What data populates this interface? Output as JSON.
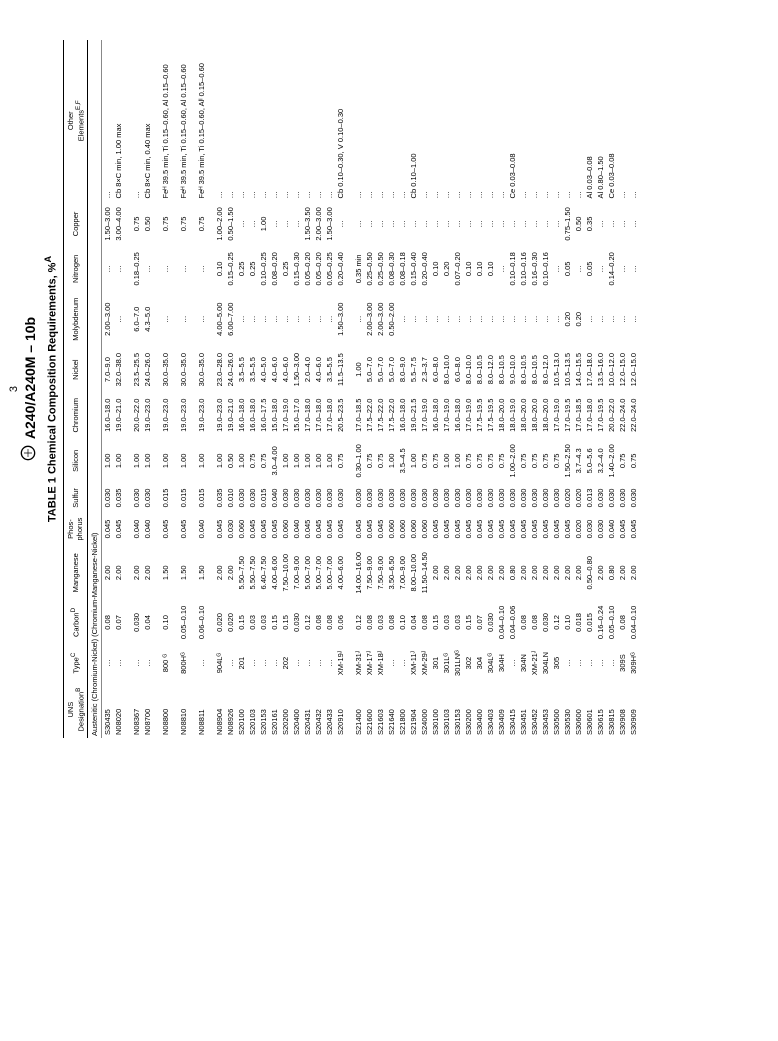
{
  "page_number": "3",
  "doc_title": "A240/A240M – 10b",
  "table_title": "TABLE 1 Chemical Composition Requirements, %",
  "table_title_super": "A",
  "section_heading": "Austenitic (Chromium-Nickel) (Chromium-Manganese-Nickel)",
  "columns": [
    "UNS\nDesignation",
    "Type",
    "Carbon",
    "Manganese",
    "Phos-\nphorus",
    "Sulfur",
    "Silicon",
    "Chromium",
    "Nickel",
    "Molybdenum",
    "Nitrogen",
    "Copper",
    "Other\nElements"
  ],
  "col_super": [
    "B",
    "C",
    "D",
    "",
    "",
    "",
    "",
    "",
    "",
    "",
    "",
    "",
    "E,F"
  ],
  "rows": [
    [
      "S30435",
      "…",
      "0.08",
      "2.00",
      "0.045",
      "0.030",
      "1.00",
      "16.0–18.0",
      "7.0–9.0",
      "2.00–3.00",
      "…",
      "1.50–3.00",
      "…"
    ],
    [
      "N08020",
      "…",
      "0.07",
      "2.00",
      "0.045",
      "0.035",
      "1.00",
      "19.0–21.0",
      "32.0–38.0",
      "…",
      "…",
      "3.00–4.00",
      "Cb 8×C min, 1.00 max"
    ],
    [
      "",
      "",
      "",
      "",
      "",
      "",
      "",
      "",
      "",
      "",
      "",
      "",
      ""
    ],
    [
      "N08367",
      "…",
      "0.030",
      "2.00",
      "0.040",
      "0.030",
      "1.00",
      "20.0–22.0",
      "23.5–25.5",
      "6.0–7.0",
      "0.18–0.25",
      "0.75",
      "…"
    ],
    [
      "N08700",
      "…",
      "0.04",
      "2.00",
      "0.040",
      "0.030",
      "1.00",
      "19.0–23.0",
      "24.0–26.0",
      "4.3–5.0",
      "…",
      "0.50",
      "Cb 8×C min, 0.40 max"
    ],
    [
      "",
      "",
      "",
      "",
      "",
      "",
      "",
      "",
      "",
      "",
      "",
      "",
      ""
    ],
    [
      "N08800",
      "800 ᴳ",
      "0.10",
      "1.50",
      "0.045",
      "0.015",
      "1.00",
      "19.0–23.0",
      "30.0–35.0",
      "…",
      "…",
      "0.75",
      "Feᴴ 39.5 min, Ti 0.15–0.60, Al 0.15–0.60"
    ],
    [
      "",
      "",
      "",
      "",
      "",
      "",
      "",
      "",
      "",
      "",
      "",
      "",
      ""
    ],
    [
      "N08810",
      "800Hᴳ",
      "0.05–0.10",
      "1.50",
      "0.045",
      "0.015",
      "1.00",
      "19.0–23.0",
      "30.0–35.0",
      "…",
      "…",
      "0.75",
      "Feᴴ 39.5 min, Ti 0.15–0.60, Al 0.15–0.60"
    ],
    [
      "",
      "",
      "",
      "",
      "",
      "",
      "",
      "",
      "",
      "",
      "",
      "",
      ""
    ],
    [
      "N08811",
      "…",
      "0.06–0.10",
      "1.50",
      "0.040",
      "0.015",
      "1.00",
      "19.0–23.0",
      "30.0–35.0",
      "…",
      "…",
      "0.75",
      "Feᴴ 39.5 min, Ti 0.15–0.60, Alᴵ 0.15–0.60"
    ],
    [
      "",
      "",
      "",
      "",
      "",
      "",
      "",
      "",
      "",
      "",
      "",
      "",
      ""
    ],
    [
      "N08904",
      "904Lᴳ",
      "0.020",
      "2.00",
      "0.045",
      "0.035",
      "1.00",
      "19.0–23.0",
      "23.0–28.0",
      "4.00–5.00",
      "0.10",
      "1.00–2.00",
      "…"
    ],
    [
      "N08926",
      "…",
      "0.020",
      "2.00",
      "0.030",
      "0.010",
      "0.50",
      "19.0–21.0",
      "24.0–26.0",
      "6.00–7.00",
      "0.15–0.25",
      "0.50–1.50",
      "…"
    ],
    [
      "S20100",
      "201",
      "0.15",
      "5.50–7.50",
      "0.060",
      "0.030",
      "1.00",
      "16.0–18.0",
      "3.5–5.5",
      "…",
      "0.25",
      "…",
      "…"
    ],
    [
      "S20103",
      "…",
      "0.03",
      "5.50–7.50",
      "0.045",
      "0.030",
      "0.75",
      "16.0–18.0",
      "3.5–5.5",
      "…",
      "0.25",
      "…",
      "…"
    ],
    [
      "S20153",
      "…",
      "0.03",
      "6.40–7.50",
      "0.045",
      "0.015",
      "0.75",
      "16.0–17.5",
      "4.0–5.0",
      "…",
      "0.10–0.25",
      "1.00",
      "…"
    ],
    [
      "S20161",
      "…",
      "0.15",
      "4.00–6.00",
      "0.045",
      "0.040",
      "3.0–4.00",
      "15.0–18.0",
      "4.0–6.0",
      "…",
      "0.08–0.20",
      "…",
      "…"
    ],
    [
      "S20200",
      "202",
      "0.15",
      "7.50–10.00",
      "0.060",
      "0.030",
      "1.00",
      "17.0–19.0",
      "4.0–6.0",
      "…",
      "0.25",
      "…",
      "…"
    ],
    [
      "S20400",
      "…",
      "0.030",
      "7.00–9.00",
      "0.040",
      "0.030",
      "1.00",
      "15.0–17.0",
      "1.50–3.00",
      "…",
      "0.15–0.30",
      "…",
      "…"
    ],
    [
      "S20431",
      "…",
      "0.12",
      "5.00–7.00",
      "0.045",
      "0.030",
      "1.00",
      "17.0–18.0",
      "2.0–4.0",
      "…",
      "0.05–0.20",
      "1.50–3.50",
      "…"
    ],
    [
      "S20432",
      "…",
      "0.08",
      "5.00–7.00",
      "0.045",
      "0.030",
      "1.00",
      "17.0–18.0",
      "4.0–6.0",
      "…",
      "0.05–0.20",
      "2.00–3.00",
      "…"
    ],
    [
      "S20433",
      "…",
      "0.08",
      "5.00–7.00",
      "0.045",
      "0.030",
      "1.00",
      "17.0–18.0",
      "3.5–5.5",
      "…",
      "0.05–0.25",
      "1.50–3.00",
      "…"
    ],
    [
      "S20910",
      "XM-19ᴶ",
      "0.06",
      "4.00–6.00",
      "0.045",
      "0.030",
      "0.75",
      "20.5–23.5",
      "11.5–13.5",
      "1.50–3.00",
      "0.20–0.40",
      "…",
      "Cb 0.10–0.30, V 0.10–0.30"
    ],
    [
      "",
      "",
      "",
      "",
      "",
      "",
      "",
      "",
      "",
      "",
      "",
      "",
      ""
    ],
    [
      "S21400",
      "XM-31ᴶ",
      "0.12",
      "14.00–16.00",
      "0.045",
      "0.030",
      "0.30–1.00",
      "17.0–18.5",
      "1.00",
      "…",
      "0.35 min",
      "…",
      "…"
    ],
    [
      "S21600",
      "XM-17ᴶ",
      "0.08",
      "7.50–9.00",
      "0.045",
      "0.030",
      "0.75",
      "17.5–22.0",
      "5.0–7.0",
      "2.00–3.00",
      "0.25–0.50",
      "…",
      "…"
    ],
    [
      "S21603",
      "XM-18ᴶ",
      "0.03",
      "7.50–9.00",
      "0.045",
      "0.030",
      "0.75",
      "17.5–22.0",
      "5.0–7.0",
      "2.00–3.00",
      "0.25–0.50",
      "…",
      "…"
    ],
    [
      "S21640",
      "…",
      "0.08",
      "3.50–6.50",
      "0.060",
      "0.030",
      "1.00",
      "17.5–22.0",
      "5.0–7.0",
      "0.50–2.00",
      "0.08–0.30",
      "…",
      "…"
    ],
    [
      "S21800",
      "…",
      "0.10",
      "7.00–9.00",
      "0.060",
      "0.030",
      "3.5–4.5",
      "16.0–18.0",
      "8.0–9.0",
      "…",
      "0.08–0.18",
      "…",
      "…"
    ],
    [
      "S21904",
      "XM-11ᴶ",
      "0.04",
      "8.00–10.00",
      "0.060",
      "0.030",
      "1.00",
      "19.0–21.5",
      "5.5–7.5",
      "…",
      "0.15–0.40",
      "…",
      "Cb 0.10–1.00"
    ],
    [
      "S24000",
      "XM-29ᴶ",
      "0.08",
      "11.50–14.50",
      "0.060",
      "0.030",
      "0.75",
      "17.0–19.0",
      "2.3–3.7",
      "…",
      "0.20–0.40",
      "…",
      "…"
    ],
    [
      "S30100",
      "301",
      "0.15",
      "2.00",
      "0.045",
      "0.030",
      "0.75",
      "16.0–18.0",
      "6.0–8.0",
      "…",
      "0.10",
      "…",
      "…"
    ],
    [
      "S30103",
      "301Lᴳ",
      "0.03",
      "2.00",
      "0.045",
      "0.030",
      "1.00",
      "17.0–19.0",
      "8.0–10.0",
      "…",
      "0.20",
      "…",
      "…"
    ],
    [
      "S30153",
      "301LNᴳ",
      "0.03",
      "2.00",
      "0.045",
      "0.030",
      "1.00",
      "16.0–18.0",
      "6.0–8.0",
      "…",
      "0.07–0.20",
      "…",
      "…"
    ],
    [
      "S30200",
      "302",
      "0.15",
      "2.00",
      "0.045",
      "0.030",
      "0.75",
      "17.0–19.0",
      "8.0–10.0",
      "…",
      "0.10",
      "…",
      "…"
    ],
    [
      "S30400",
      "304",
      "0.07",
      "2.00",
      "0.045",
      "0.030",
      "0.75",
      "17.5–19.5",
      "8.0–10.5",
      "…",
      "0.10",
      "…",
      "…"
    ],
    [
      "S30403",
      "304Lᴳ",
      "0.030",
      "2.00",
      "0.045",
      "0.030",
      "0.75",
      "17.5–19.5",
      "8.0–12.0",
      "…",
      "0.10",
      "…",
      "…"
    ],
    [
      "S30409",
      "304H",
      "0.04–0.10",
      "2.00",
      "0.045",
      "0.030",
      "0.75",
      "18.0–20.0",
      "8.0–10.5",
      "…",
      "…",
      "…",
      "…"
    ],
    [
      "S30415",
      "…",
      "0.04–0.06",
      "0.80",
      "0.045",
      "0.030",
      "1.00–2.00",
      "18.0–19.0",
      "9.0–10.0",
      "…",
      "0.10–0.18",
      "…",
      "Ce 0.03–0.08"
    ],
    [
      "S30451",
      "304N",
      "0.08",
      "2.00",
      "0.045",
      "0.030",
      "0.75",
      "18.0–20.0",
      "8.0–10.5",
      "…",
      "0.10–0.16",
      "…",
      "…"
    ],
    [
      "S30452",
      "XM-21ᴶ",
      "0.08",
      "2.00",
      "0.045",
      "0.030",
      "0.75",
      "18.0–20.0",
      "8.0–10.5",
      "…",
      "0.16–0.30",
      "…",
      "…"
    ],
    [
      "S30453",
      "304LN",
      "0.030",
      "2.00",
      "0.045",
      "0.030",
      "0.75",
      "18.0–20.0",
      "8.0–12.0",
      "…",
      "0.10–0.16",
      "…",
      "…"
    ],
    [
      "S30500",
      "305",
      "0.12",
      "2.00",
      "0.045",
      "0.030",
      "0.75",
      "17.0–19.0",
      "10.5–13.0",
      "…",
      "…",
      "…",
      "…"
    ],
    [
      "S30530",
      "…",
      "0.10",
      "2.00",
      "0.045",
      "0.020",
      "1.50–2.50",
      "17.0–19.5",
      "10.5–13.5",
      "0.20",
      "0.05",
      "0.75–1.50",
      "…"
    ],
    [
      "S30600",
      "…",
      "0.018",
      "2.00",
      "0.020",
      "0.020",
      "3.7–4.3",
      "17.0–18.5",
      "14.0–15.5",
      "0.20",
      "…",
      "0.50",
      "…"
    ],
    [
      "S30601",
      "…",
      "0.015",
      "0.50–0.80",
      "0.030",
      "0.013",
      "5.0–5.6",
      "17.0–18.0",
      "17.0–18.0",
      "…",
      "0.05",
      "0.35",
      "Al 0.03–0.08"
    ],
    [
      "S30615",
      "…",
      "0.16–0.24",
      "2.00",
      "0.030",
      "0.030",
      "3.2–4.0",
      "17.0–19.5",
      "13.5–16.0",
      "…",
      "…",
      "…",
      "Al 0.80–1.50"
    ],
    [
      "S30815",
      "…",
      "0.05–0.10",
      "0.80",
      "0.040",
      "0.030",
      "1.40–2.00",
      "20.0–22.0",
      "10.0–12.0",
      "…",
      "0.14–0.20",
      "…",
      "Ce 0.03–0.08"
    ],
    [
      "S30908",
      "309S",
      "0.08",
      "2.00",
      "0.045",
      "0.030",
      "0.75",
      "22.0–24.0",
      "12.0–15.0",
      "…",
      "…",
      "…",
      "…"
    ],
    [
      "S30909",
      "309Hᴳ",
      "0.04–0.10",
      "2.00",
      "0.045",
      "0.030",
      "0.75",
      "22.0–24.0",
      "12.0–15.0",
      "…",
      "…",
      "…",
      "…"
    ]
  ]
}
